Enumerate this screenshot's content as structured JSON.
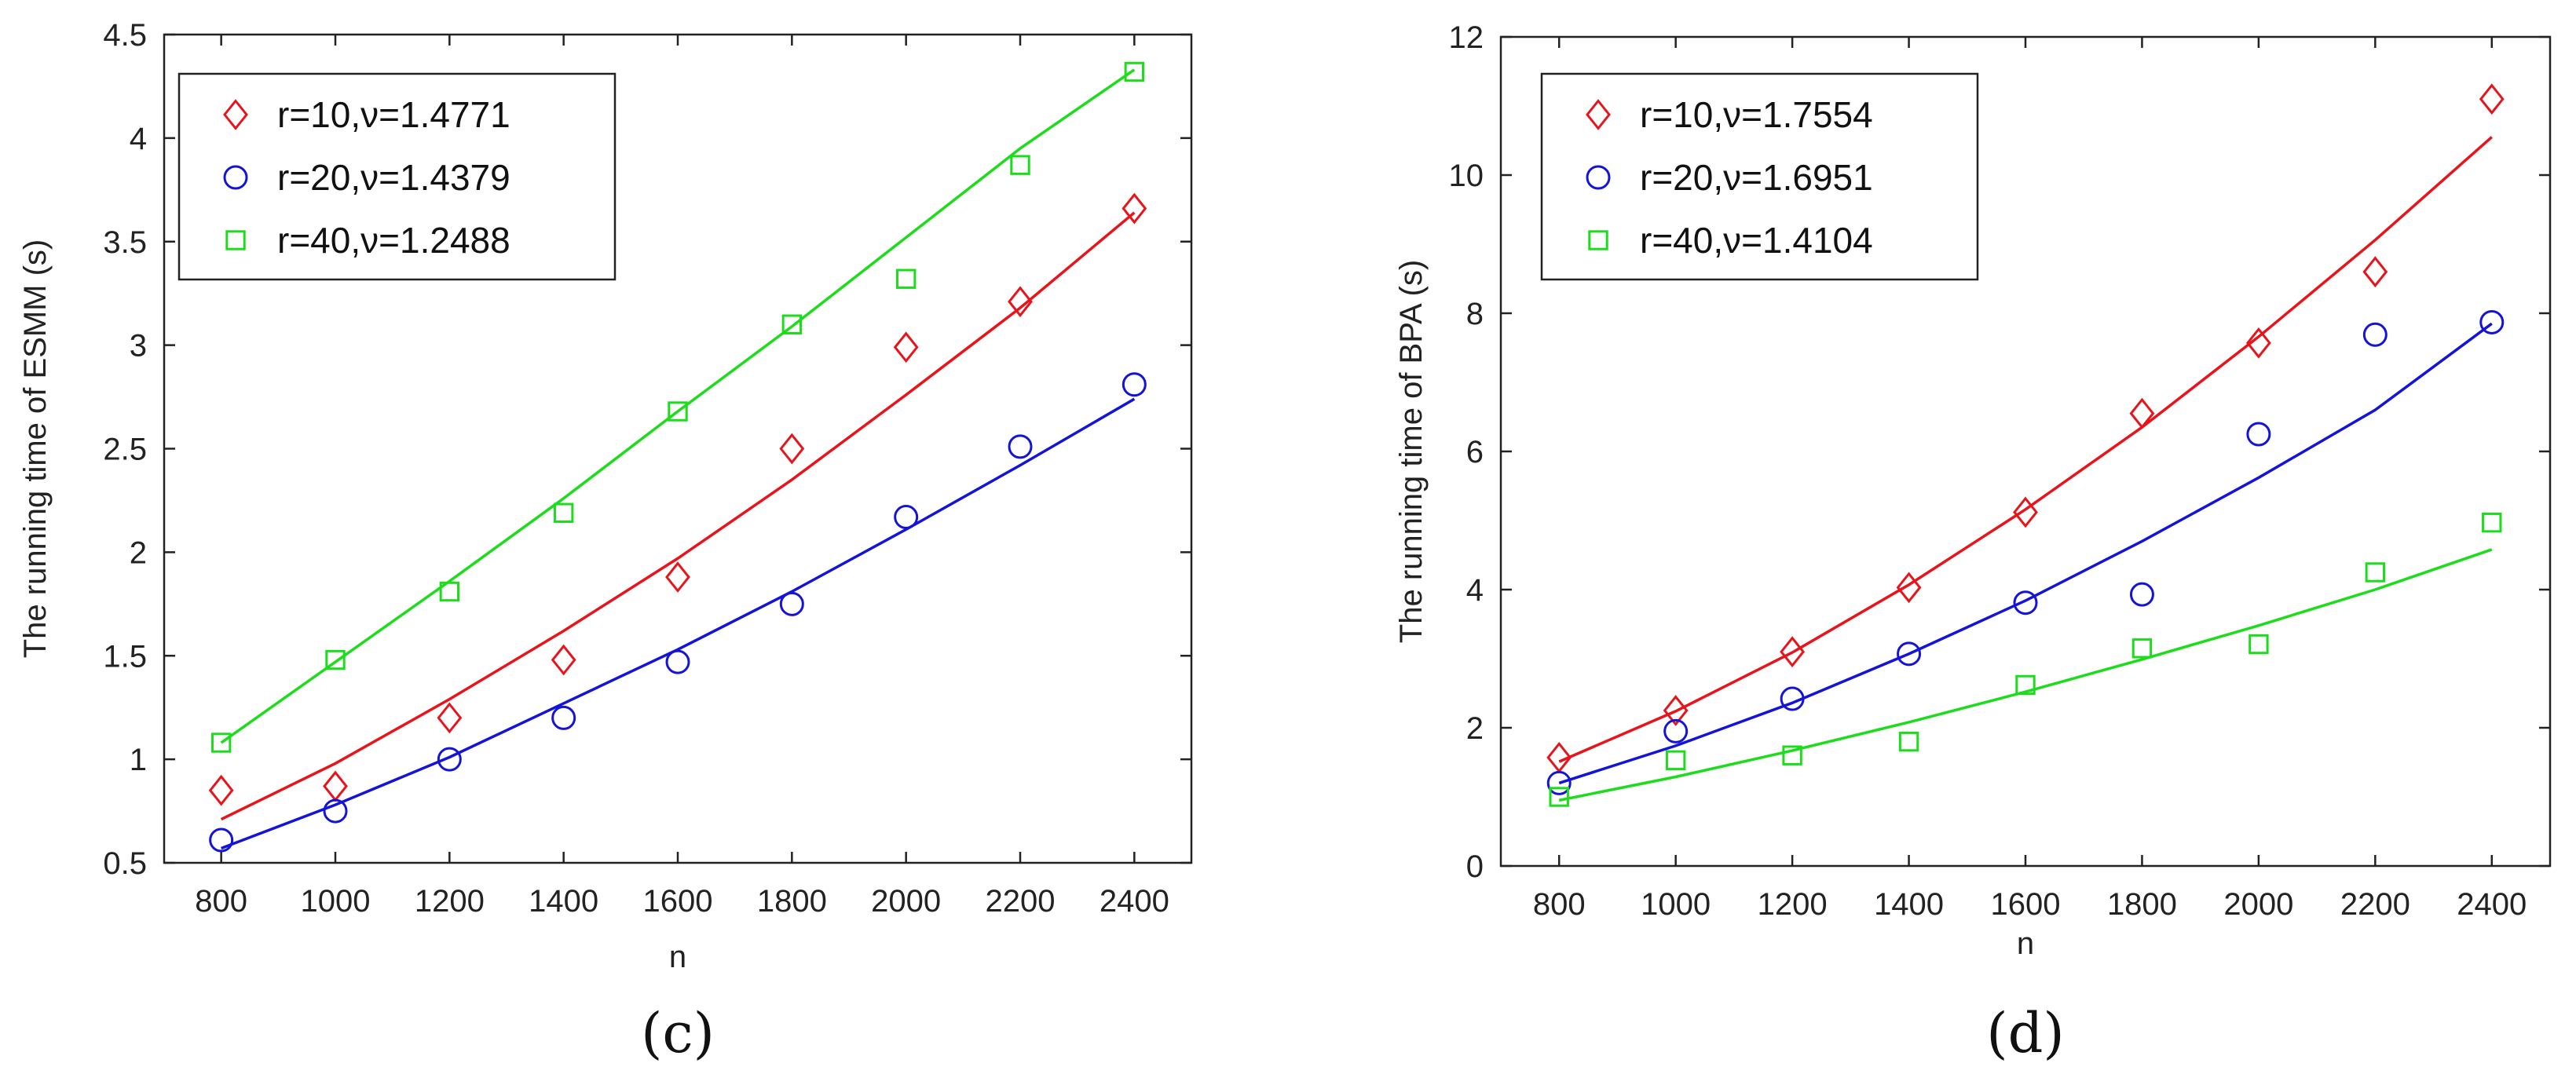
{
  "chart_data": [
    {
      "type": "scatter",
      "panel_label": "(c)",
      "title": "",
      "xlabel": "n",
      "ylabel": "The running time of ESMM (s)",
      "x": [
        800,
        1000,
        1200,
        1400,
        1600,
        1800,
        2000,
        2200,
        2400
      ],
      "xlim": [
        700,
        2500
      ],
      "ylim": [
        0.5,
        4.5
      ],
      "xticks": [
        800,
        1000,
        1200,
        1400,
        1600,
        1800,
        2000,
        2200,
        2400
      ],
      "yticks": [
        0.5,
        1,
        1.5,
        2,
        2.5,
        3,
        3.5,
        4,
        4.5
      ],
      "ytick_labels": [
        "0.5",
        "1",
        "1.5",
        "2",
        "2.5",
        "3",
        "3.5",
        "4",
        "4.5"
      ],
      "legend_position": "top-left",
      "series": [
        {
          "name": "r=10,ν=1.4771",
          "marker": "diamond",
          "color": "#e8141b",
          "values": [
            0.85,
            0.87,
            1.2,
            1.48,
            1.88,
            2.5,
            2.99,
            3.21,
            3.66
          ],
          "fit": [
            0.71,
            0.98,
            1.29,
            1.62,
            1.97,
            2.35,
            2.76,
            3.18,
            3.64
          ]
        },
        {
          "name": "r=20,ν=1.4379",
          "marker": "circle",
          "color": "#1414d8",
          "values": [
            0.61,
            0.75,
            1.0,
            1.2,
            1.47,
            1.75,
            2.17,
            2.51,
            2.81
          ],
          "fit": [
            0.57,
            0.78,
            1.01,
            1.27,
            1.53,
            1.81,
            2.11,
            2.42,
            2.74
          ]
        },
        {
          "name": "r=40,ν=1.2488",
          "marker": "square",
          "color": "#1cdc1c",
          "values": [
            1.08,
            1.48,
            1.81,
            2.19,
            2.68,
            3.1,
            3.32,
            3.87,
            4.32
          ],
          "fit": [
            1.08,
            1.47,
            1.86,
            2.26,
            2.68,
            3.09,
            3.52,
            3.95,
            4.33
          ]
        }
      ]
    },
    {
      "type": "scatter",
      "panel_label": "(d)",
      "title": "",
      "xlabel": "n",
      "ylabel": "The running time of BPA (s)",
      "x": [
        800,
        1000,
        1200,
        1400,
        1600,
        1800,
        2000,
        2200,
        2400
      ],
      "xlim": [
        700,
        2500
      ],
      "ylim": [
        0,
        12
      ],
      "xticks": [
        800,
        1000,
        1200,
        1400,
        1600,
        1800,
        2000,
        2200,
        2400
      ],
      "yticks": [
        0,
        2,
        4,
        6,
        8,
        10,
        12
      ],
      "ytick_labels": [
        "0",
        "2",
        "4",
        "6",
        "8",
        "10",
        "12"
      ],
      "legend_position": "top-left",
      "series": [
        {
          "name": "r=10,ν=1.7554",
          "marker": "diamond",
          "color": "#e8141b",
          "values": [
            1.57,
            2.25,
            3.1,
            4.03,
            5.12,
            6.55,
            7.57,
            8.6,
            11.1
          ],
          "fit": [
            1.51,
            2.24,
            3.09,
            4.07,
            5.16,
            6.35,
            7.66,
            9.06,
            10.55
          ]
        },
        {
          "name": "r=20,ν=1.6951",
          "marker": "circle",
          "color": "#1414d8",
          "values": [
            1.2,
            1.95,
            2.42,
            3.07,
            3.81,
            3.93,
            6.25,
            7.69,
            7.87
          ],
          "fit": [
            1.2,
            1.74,
            2.36,
            3.07,
            3.84,
            4.7,
            5.62,
            6.6,
            7.85
          ]
        },
        {
          "name": "r=40,ν=1.4104",
          "marker": "square",
          "color": "#1cdc1c",
          "values": [
            1.0,
            1.53,
            1.6,
            1.8,
            2.62,
            3.15,
            3.21,
            4.25,
            4.97
          ],
          "fit": [
            0.95,
            1.29,
            1.67,
            2.08,
            2.52,
            2.99,
            3.48,
            4.0,
            4.58
          ]
        }
      ]
    }
  ]
}
